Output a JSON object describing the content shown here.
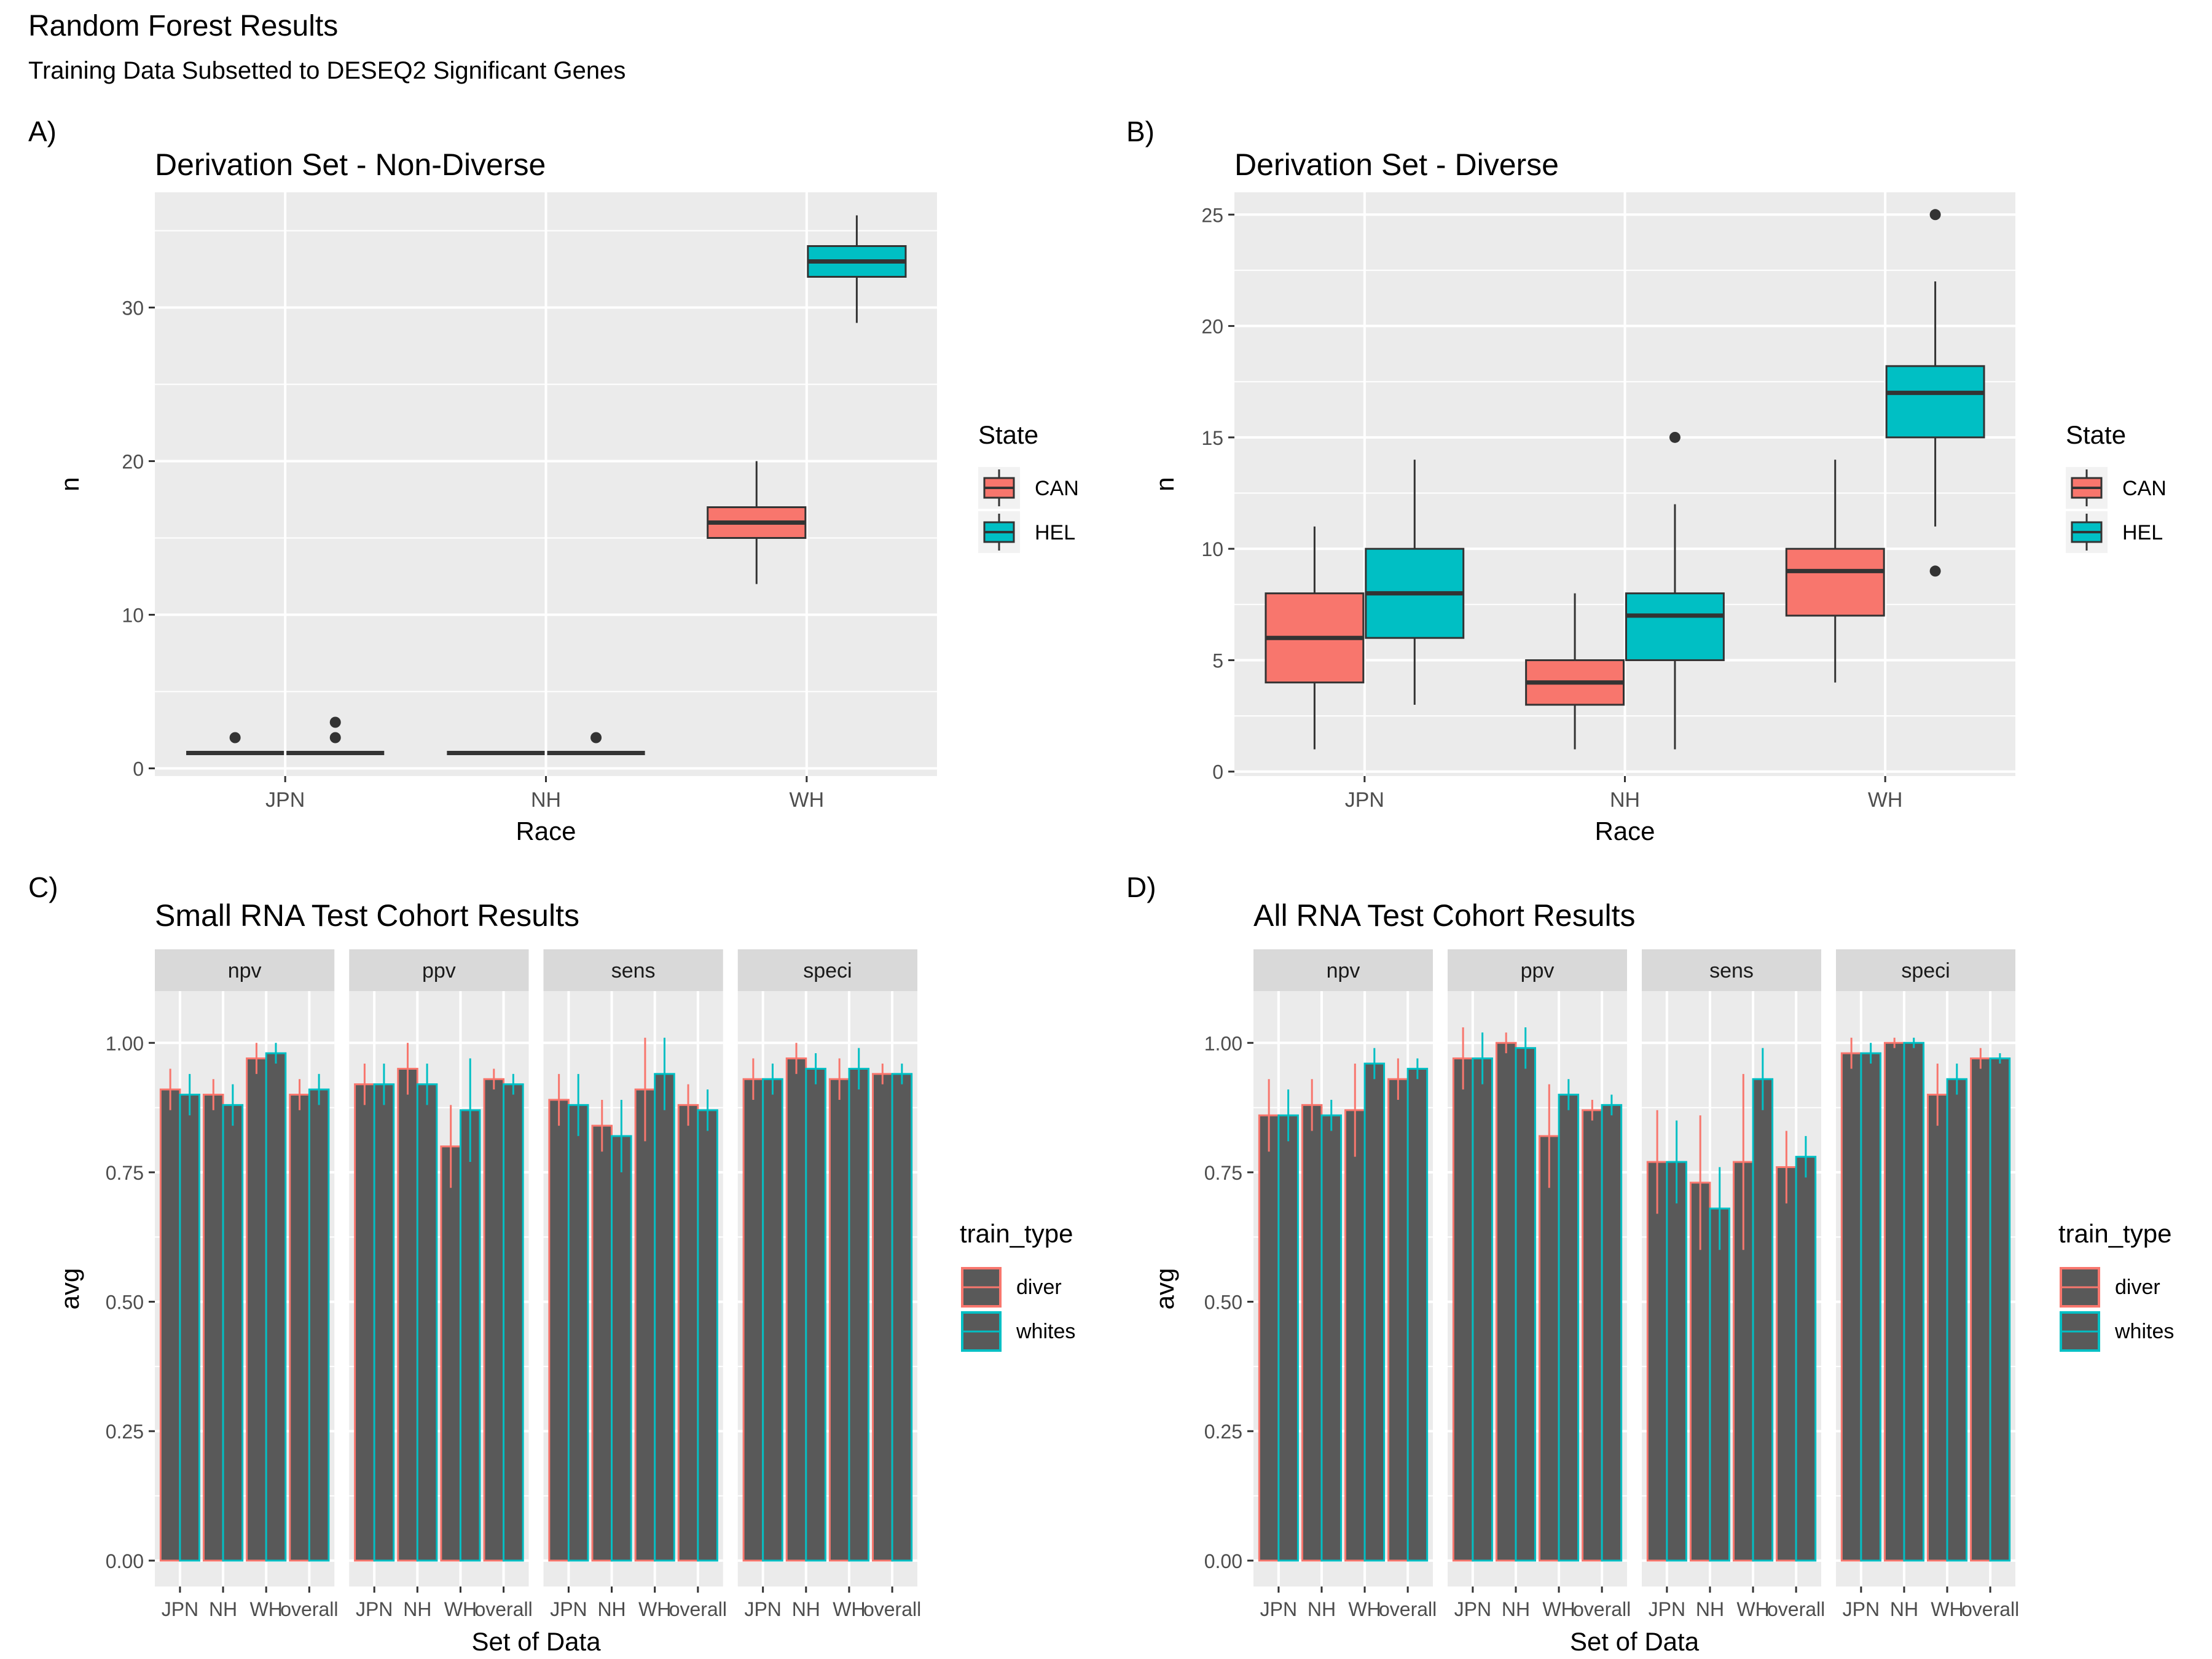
{
  "figure": {
    "title": "Random Forest Results",
    "subtitle": "Training Data Subsetted to DESEQ2 Significant Genes"
  },
  "colors": {
    "can": "#F8766D",
    "hel": "#00BFC4",
    "panel_bg": "#EBEBEB",
    "strip_bg": "#D9D9D9",
    "bar_fill": "#595959",
    "text": "#000000",
    "axis_text": "#4D4D4D"
  },
  "chart_data": [
    {
      "tag": "A)",
      "type": "box",
      "title": "Derivation Set - Non-Diverse",
      "xlabel": "Race",
      "ylabel": "n",
      "categories": [
        "JPN",
        "NH",
        "WH"
      ],
      "ylim": [
        -0.5,
        37.5
      ],
      "yticks": [
        0,
        10,
        20,
        30
      ],
      "legend": {
        "title": "State",
        "position": "right",
        "items": [
          "CAN",
          "HEL"
        ]
      },
      "series": [
        {
          "name": "CAN",
          "boxes": [
            {
              "category": "JPN",
              "min": 1,
              "q1": 1,
              "median": 1,
              "q3": 1,
              "max": 1,
              "outliers": [
                2
              ]
            },
            {
              "category": "NH",
              "min": 1,
              "q1": 1,
              "median": 1,
              "q3": 1,
              "max": 1,
              "outliers": []
            },
            {
              "category": "WH",
              "min": 12,
              "q1": 15,
              "median": 16,
              "q3": 17,
              "max": 20,
              "outliers": []
            }
          ]
        },
        {
          "name": "HEL",
          "boxes": [
            {
              "category": "JPN",
              "min": 1,
              "q1": 1,
              "median": 1,
              "q3": 1,
              "max": 1,
              "outliers": [
                2,
                3
              ]
            },
            {
              "category": "NH",
              "min": 1,
              "q1": 1,
              "median": 1,
              "q3": 1,
              "max": 1,
              "outliers": [
                2
              ]
            },
            {
              "category": "WH",
              "min": 29,
              "q1": 32,
              "median": 33,
              "q3": 34,
              "max": 36,
              "outliers": []
            }
          ]
        }
      ]
    },
    {
      "tag": "B)",
      "type": "box",
      "title": "Derivation Set - Diverse",
      "xlabel": "Race",
      "ylabel": "n",
      "categories": [
        "JPN",
        "NH",
        "WH"
      ],
      "ylim": [
        -0.2,
        26.0
      ],
      "yticks": [
        0,
        5,
        10,
        15,
        20,
        25
      ],
      "legend": {
        "title": "State",
        "position": "right",
        "items": [
          "CAN",
          "HEL"
        ]
      },
      "series": [
        {
          "name": "CAN",
          "boxes": [
            {
              "category": "JPN",
              "min": 1,
              "q1": 4,
              "median": 6,
              "q3": 8,
              "max": 11,
              "outliers": []
            },
            {
              "category": "NH",
              "min": 1,
              "q1": 3,
              "median": 4,
              "q3": 5,
              "max": 8,
              "outliers": []
            },
            {
              "category": "WH",
              "min": 4,
              "q1": 7,
              "median": 9,
              "q3": 10,
              "max": 14,
              "outliers": []
            }
          ]
        },
        {
          "name": "HEL",
          "boxes": [
            {
              "category": "JPN",
              "min": 3,
              "q1": 6,
              "median": 8,
              "q3": 10,
              "max": 14,
              "outliers": []
            },
            {
              "category": "NH",
              "min": 1,
              "q1": 5,
              "median": 7,
              "q3": 8,
              "max": 12,
              "outliers": [
                15
              ]
            },
            {
              "category": "WH",
              "min": 11,
              "q1": 15,
              "median": 17,
              "q3": 18.2,
              "max": 22,
              "outliers": [
                25,
                9
              ]
            }
          ]
        }
      ]
    },
    {
      "tag": "C)",
      "type": "bar",
      "title": "Small RNA Test Cohort Results",
      "xlabel": "Set of Data",
      "ylabel": "avg",
      "facets": [
        "npv",
        "ppv",
        "sens",
        "speci"
      ],
      "categories": [
        "JPN",
        "NH",
        "WH",
        "overall"
      ],
      "ylim": [
        -0.05,
        1.1
      ],
      "yticks": [
        "0.00",
        "0.25",
        "0.50",
        "0.75",
        "1.00"
      ],
      "legend": {
        "title": "train_type",
        "position": "right",
        "items": [
          "diver",
          "whites"
        ]
      },
      "series": [
        {
          "name": "diver",
          "values": {
            "npv": [
              0.91,
              0.9,
              0.97,
              0.9
            ],
            "ppv": [
              0.92,
              0.95,
              0.8,
              0.93
            ],
            "sens": [
              0.89,
              0.84,
              0.91,
              0.88
            ],
            "speci": [
              0.93,
              0.97,
              0.93,
              0.94
            ]
          },
          "errors": {
            "npv": [
              0.04,
              0.03,
              0.03,
              0.03
            ],
            "ppv": [
              0.04,
              0.05,
              0.08,
              0.02
            ],
            "sens": [
              0.05,
              0.05,
              0.1,
              0.04
            ],
            "speci": [
              0.04,
              0.03,
              0.04,
              0.02
            ]
          }
        },
        {
          "name": "whites",
          "values": {
            "npv": [
              0.9,
              0.88,
              0.98,
              0.91
            ],
            "ppv": [
              0.92,
              0.92,
              0.87,
              0.92
            ],
            "sens": [
              0.88,
              0.82,
              0.94,
              0.87
            ],
            "speci": [
              0.93,
              0.95,
              0.95,
              0.94
            ]
          },
          "errors": {
            "npv": [
              0.04,
              0.04,
              0.02,
              0.03
            ],
            "ppv": [
              0.04,
              0.04,
              0.1,
              0.02
            ],
            "sens": [
              0.06,
              0.07,
              0.07,
              0.04
            ],
            "speci": [
              0.03,
              0.03,
              0.04,
              0.02
            ]
          }
        }
      ]
    },
    {
      "tag": "D)",
      "type": "bar",
      "title": "All RNA Test Cohort Results",
      "xlabel": "Set of Data",
      "ylabel": "avg",
      "facets": [
        "npv",
        "ppv",
        "sens",
        "speci"
      ],
      "categories": [
        "JPN",
        "NH",
        "WH",
        "overall"
      ],
      "ylim": [
        -0.05,
        1.1
      ],
      "yticks": [
        "0.00",
        "0.25",
        "0.50",
        "0.75",
        "1.00"
      ],
      "legend": {
        "title": "train_type",
        "position": "right",
        "items": [
          "diver",
          "whites"
        ]
      },
      "series": [
        {
          "name": "diver",
          "values": {
            "npv": [
              0.86,
              0.88,
              0.87,
              0.93
            ],
            "ppv": [
              0.97,
              1.0,
              0.82,
              0.87
            ],
            "sens": [
              0.77,
              0.73,
              0.77,
              0.76
            ],
            "speci": [
              0.98,
              1.0,
              0.9,
              0.97
            ]
          },
          "errors": {
            "npv": [
              0.07,
              0.05,
              0.09,
              0.04
            ],
            "ppv": [
              0.06,
              0.02,
              0.1,
              0.02
            ],
            "sens": [
              0.1,
              0.13,
              0.17,
              0.07
            ],
            "speci": [
              0.03,
              0.01,
              0.06,
              0.02
            ]
          }
        },
        {
          "name": "whites",
          "values": {
            "npv": [
              0.86,
              0.86,
              0.96,
              0.95
            ],
            "ppv": [
              0.97,
              0.99,
              0.9,
              0.88
            ],
            "sens": [
              0.77,
              0.68,
              0.93,
              0.78
            ],
            "speci": [
              0.98,
              1.0,
              0.93,
              0.97
            ]
          },
          "errors": {
            "npv": [
              0.05,
              0.03,
              0.03,
              0.02
            ],
            "ppv": [
              0.05,
              0.04,
              0.03,
              0.02
            ],
            "sens": [
              0.08,
              0.08,
              0.06,
              0.04
            ],
            "speci": [
              0.02,
              0.01,
              0.03,
              0.01
            ]
          }
        }
      ]
    }
  ]
}
